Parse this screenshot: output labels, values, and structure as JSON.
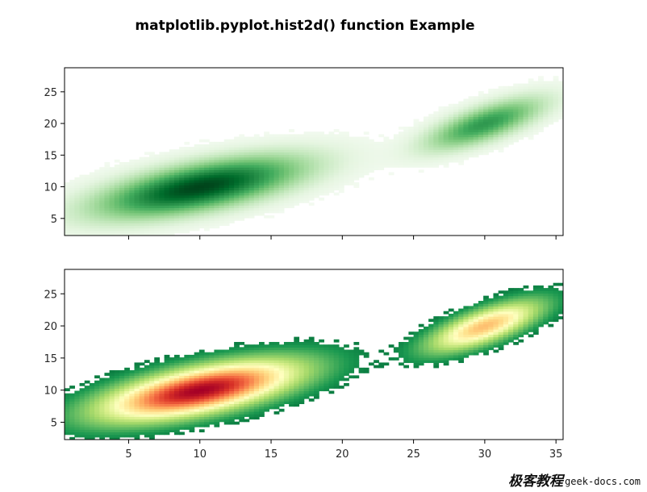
{
  "chart_data": [
    {
      "type": "heatmap",
      "subtype": "hist2d",
      "colormap": "Greens",
      "title": "matplotlib.pyplot.hist2d() function Example",
      "xlim": [
        0.5,
        35.5
      ],
      "ylim": [
        2.3,
        28.8
      ],
      "xticks": [
        5,
        10,
        15,
        20,
        25,
        30,
        35
      ],
      "xtick_labels_visible": false,
      "yticks": [
        5,
        10,
        15,
        20,
        25
      ],
      "grid": false,
      "clusters": [
        {
          "center": [
            10,
            10
          ],
          "spread": [
            4.5,
            3.0
          ],
          "orientation": "positive correlation",
          "peak_density": "high"
        },
        {
          "center": [
            30,
            20
          ],
          "spread": [
            2.6,
            2.6
          ],
          "orientation": "positive correlation",
          "peak_density": "medium"
        }
      ]
    },
    {
      "type": "heatmap",
      "subtype": "hist2d",
      "colormap": "RdYlGn_r",
      "xlim": [
        0.5,
        35.5
      ],
      "ylim": [
        2.3,
        28.8
      ],
      "xticks": [
        5,
        10,
        15,
        20,
        25,
        30,
        35
      ],
      "yticks": [
        5,
        10,
        15,
        20,
        25
      ],
      "grid": false,
      "clusters": [
        {
          "center": [
            10,
            10
          ],
          "spread": [
            4.5,
            3.0
          ],
          "orientation": "positive correlation",
          "peak_density": "high"
        },
        {
          "center": [
            30,
            20
          ],
          "spread": [
            2.6,
            2.6
          ],
          "orientation": "positive correlation",
          "peak_density": "medium"
        }
      ]
    }
  ],
  "watermark": {
    "cn": "极客教程",
    "url": "geek-docs.com"
  }
}
